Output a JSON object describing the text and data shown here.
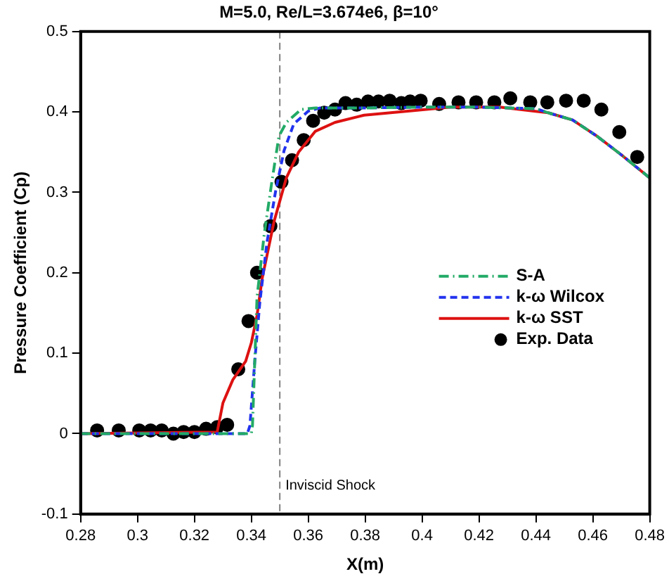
{
  "chart_data": {
    "type": "line",
    "title": "M=5.0, Re/L=3.674e6, β=10°",
    "xlabel": "X(m)",
    "ylabel": "Pressure Coefficient (Cp)",
    "xlim": [
      0.28,
      0.48
    ],
    "xticks": [
      0.28,
      0.3,
      0.32,
      0.34,
      0.36,
      0.38,
      0.4,
      0.42,
      0.44,
      0.46,
      0.48
    ],
    "ylim": [
      -0.1,
      0.5
    ],
    "yticks": [
      -0.1,
      0,
      0.1,
      0.2,
      0.3,
      0.4,
      0.5
    ],
    "grid": false,
    "legend": "right",
    "marker": "none",
    "ref_lines": [
      {
        "axis": "x",
        "value": 0.35,
        "label": "Inviscid Shock",
        "color": "#808080",
        "line_style": "dashed"
      }
    ],
    "series": [
      {
        "name": "S-A",
        "type": "line",
        "color": "#22aa66",
        "line_style": "dashdot",
        "x": [
          0.28,
          0.34,
          0.3404,
          0.342,
          0.3446,
          0.3472,
          0.3497,
          0.3523,
          0.3574,
          0.3625,
          0.38,
          0.4,
          0.42,
          0.44,
          0.4443,
          0.4529,
          0.4614,
          0.4699,
          0.48
        ],
        "values": [
          0,
          0,
          0.01,
          0.17,
          0.25,
          0.313,
          0.37,
          0.387,
          0.403,
          0.405,
          0.405,
          0.406,
          0.406,
          0.404,
          0.399,
          0.39,
          0.37,
          0.347,
          0.318
        ]
      },
      {
        "name": "k-ω Wilcox",
        "type": "line",
        "color": "#2233ee",
        "line_style": "dashed",
        "x": [
          0.28,
          0.3386,
          0.3395,
          0.3412,
          0.343,
          0.3455,
          0.3485,
          0.3515,
          0.3549,
          0.36,
          0.3642,
          0.38,
          0.4,
          0.42,
          0.44,
          0.4443,
          0.4529,
          0.4614,
          0.4699,
          0.48
        ],
        "values": [
          0,
          0,
          0.01,
          0.09,
          0.164,
          0.238,
          0.301,
          0.352,
          0.385,
          0.401,
          0.405,
          0.405,
          0.406,
          0.406,
          0.404,
          0.399,
          0.39,
          0.37,
          0.347,
          0.318
        ]
      },
      {
        "name": "k-ω SST",
        "type": "line",
        "color": "#dd1111",
        "line_style": "solid",
        "x": [
          0.28,
          0.328,
          0.33,
          0.3335,
          0.338,
          0.34,
          0.342,
          0.3438,
          0.348,
          0.3523,
          0.3566,
          0.3625,
          0.3694,
          0.3796,
          0.395,
          0.41,
          0.4273,
          0.4443,
          0.4529,
          0.4614,
          0.4699,
          0.48
        ],
        "values": [
          0,
          0.002,
          0.038,
          0.067,
          0.09,
          0.113,
          0.147,
          0.193,
          0.264,
          0.318,
          0.35,
          0.376,
          0.387,
          0.396,
          0.401,
          0.406,
          0.406,
          0.399,
          0.39,
          0.37,
          0.347,
          0.318
        ]
      },
      {
        "name": "Exp. Data",
        "type": "scatter",
        "color": "#000000",
        "marker": "circle",
        "x": [
          0.2858,
          0.2934,
          0.3006,
          0.3046,
          0.3085,
          0.3126,
          0.3162,
          0.32,
          0.3241,
          0.328,
          0.3315,
          0.3354,
          0.339,
          0.342,
          0.3467,
          0.3506,
          0.3543,
          0.3584,
          0.3617,
          0.3656,
          0.3694,
          0.3731,
          0.377,
          0.381,
          0.3847,
          0.3886,
          0.3927,
          0.3958,
          0.3995,
          0.406,
          0.4128,
          0.419,
          0.4254,
          0.431,
          0.438,
          0.444,
          0.4506,
          0.4568,
          0.463,
          0.4693,
          0.4756
        ],
        "values": [
          0.004,
          0.004,
          0.004,
          0.004,
          0.004,
          0.0,
          0.002,
          0.002,
          0.006,
          0.008,
          0.011,
          0.08,
          0.14,
          0.2,
          0.258,
          0.313,
          0.34,
          0.365,
          0.389,
          0.399,
          0.403,
          0.411,
          0.409,
          0.413,
          0.413,
          0.414,
          0.411,
          0.413,
          0.414,
          0.41,
          0.412,
          0.412,
          0.412,
          0.417,
          0.412,
          0.412,
          0.414,
          0.414,
          0.403,
          0.375,
          0.344
        ]
      }
    ]
  }
}
